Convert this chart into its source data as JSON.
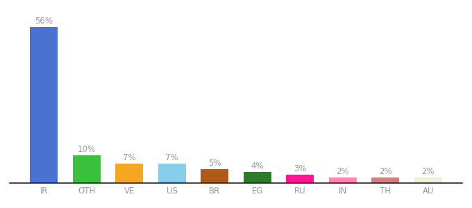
{
  "categories": [
    "IR",
    "OTH",
    "VE",
    "US",
    "BR",
    "EG",
    "RU",
    "IN",
    "TH",
    "AU"
  ],
  "values": [
    56,
    10,
    7,
    7,
    5,
    4,
    3,
    2,
    2,
    2
  ],
  "bar_colors": [
    "#4a72d1",
    "#3cbf3c",
    "#f5a623",
    "#87ceeb",
    "#b05a1a",
    "#2d7a2d",
    "#ff1493",
    "#ff85b3",
    "#d08080",
    "#f0f0d8"
  ],
  "label_color": "#999999",
  "axis_label_color": "#999999",
  "background_color": "#ffffff",
  "bar_width": 0.65,
  "label_fontsize": 8.5,
  "tick_fontsize": 8.5,
  "ylim_max": 62
}
